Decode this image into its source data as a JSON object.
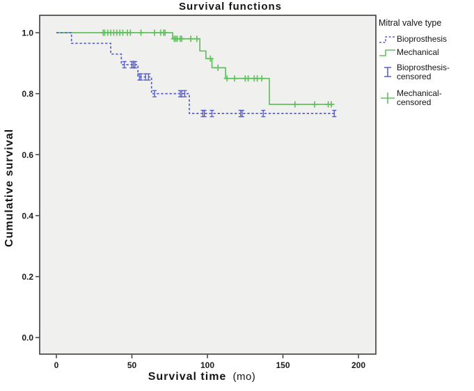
{
  "figure": {
    "title": "Survival functions"
  },
  "legend": {
    "title": "Mitral valve type",
    "items": [
      {
        "label": "Bioprosthesis",
        "lines": [
          "Bioprosthesis"
        ],
        "symbol": "dashed-step",
        "color": "#5b5fc5"
      },
      {
        "label": "Mechanical",
        "lines": [
          "Mechanical"
        ],
        "symbol": "solid-step",
        "color": "#62c05e"
      },
      {
        "label": "Bioprosthesis-censored",
        "lines": [
          "Bioprosthesis-",
          "censored"
        ],
        "symbol": "ibeam",
        "color": "#5b5fc5"
      },
      {
        "label": "Mechanical-censored",
        "lines": [
          "Mechanical-",
          "censored"
        ],
        "symbol": "plus",
        "color": "#62c05e"
      }
    ]
  },
  "colors": {
    "plot_background": "#f0f0ef",
    "axis": "#3d3d3d",
    "text": "#1a1a1a",
    "bioprosthesis": "#5b5fc5",
    "mechanical": "#62c05e"
  },
  "chart_data": {
    "type": "line",
    "subtype": "kaplan-meier-step",
    "title": "Survival functions",
    "xlabel": "Survival time",
    "xlabel_unit": "(mo)",
    "ylabel": "Cumulative survival",
    "xlim": [
      -11,
      211
    ],
    "ylim": [
      -0.05,
      1.05
    ],
    "x_ticks": [
      0,
      50,
      100,
      150,
      200
    ],
    "y_ticks": [
      "0.0",
      "0.2",
      "0.4",
      "0.6",
      "0.8",
      "1.0"
    ],
    "grid": false,
    "legend_position": "right",
    "series": [
      {
        "name": "Mechanical",
        "color": "#62c05e",
        "style": "solid",
        "censored_marker": "plus",
        "steps": [
          [
            0,
            1.0
          ],
          [
            77,
            0.98
          ],
          [
            95,
            0.94
          ],
          [
            99,
            0.915
          ],
          [
            103,
            0.885
          ],
          [
            112,
            0.85
          ],
          [
            141,
            0.765
          ]
        ],
        "end_time": 183,
        "censored": [
          [
            31,
            1.0
          ],
          [
            32,
            1.0
          ],
          [
            34,
            1.0
          ],
          [
            36,
            1.0
          ],
          [
            38,
            1.0
          ],
          [
            40,
            1.0
          ],
          [
            42,
            1.0
          ],
          [
            44,
            1.0
          ],
          [
            47,
            1.0
          ],
          [
            49,
            1.0
          ],
          [
            56,
            1.0
          ],
          [
            65,
            1.0
          ],
          [
            69,
            1.0
          ],
          [
            71,
            1.0
          ],
          [
            72,
            1.0
          ],
          [
            78,
            0.98
          ],
          [
            79,
            0.98
          ],
          [
            80,
            0.98
          ],
          [
            82,
            0.98
          ],
          [
            83,
            0.98
          ],
          [
            89,
            0.98
          ],
          [
            93,
            0.98
          ],
          [
            102,
            0.915
          ],
          [
            107,
            0.885
          ],
          [
            113,
            0.85
          ],
          [
            118,
            0.85
          ],
          [
            125,
            0.85
          ],
          [
            127,
            0.85
          ],
          [
            131,
            0.85
          ],
          [
            133,
            0.85
          ],
          [
            136,
            0.85
          ],
          [
            158,
            0.765
          ],
          [
            171,
            0.765
          ],
          [
            180,
            0.765
          ],
          [
            182,
            0.765
          ]
        ]
      },
      {
        "name": "Bioprosthesis",
        "color": "#5b5fc5",
        "style": "dashed",
        "censored_marker": "ibeam",
        "steps": [
          [
            0,
            1.0
          ],
          [
            10,
            0.965
          ],
          [
            36,
            0.93
          ],
          [
            43,
            0.895
          ],
          [
            54,
            0.855
          ],
          [
            63,
            0.8
          ],
          [
            88,
            0.735
          ]
        ],
        "end_time": 185,
        "censored": [
          [
            45,
            0.895
          ],
          [
            50,
            0.895
          ],
          [
            51,
            0.895
          ],
          [
            52,
            0.895
          ],
          [
            55,
            0.855
          ],
          [
            56,
            0.855
          ],
          [
            59,
            0.855
          ],
          [
            61,
            0.855
          ],
          [
            65,
            0.8
          ],
          [
            82,
            0.8
          ],
          [
            83,
            0.8
          ],
          [
            85,
            0.8
          ],
          [
            97,
            0.735
          ],
          [
            98,
            0.735
          ],
          [
            103,
            0.735
          ],
          [
            122,
            0.735
          ],
          [
            123,
            0.735
          ],
          [
            137,
            0.735
          ],
          [
            184,
            0.735
          ]
        ]
      }
    ]
  }
}
